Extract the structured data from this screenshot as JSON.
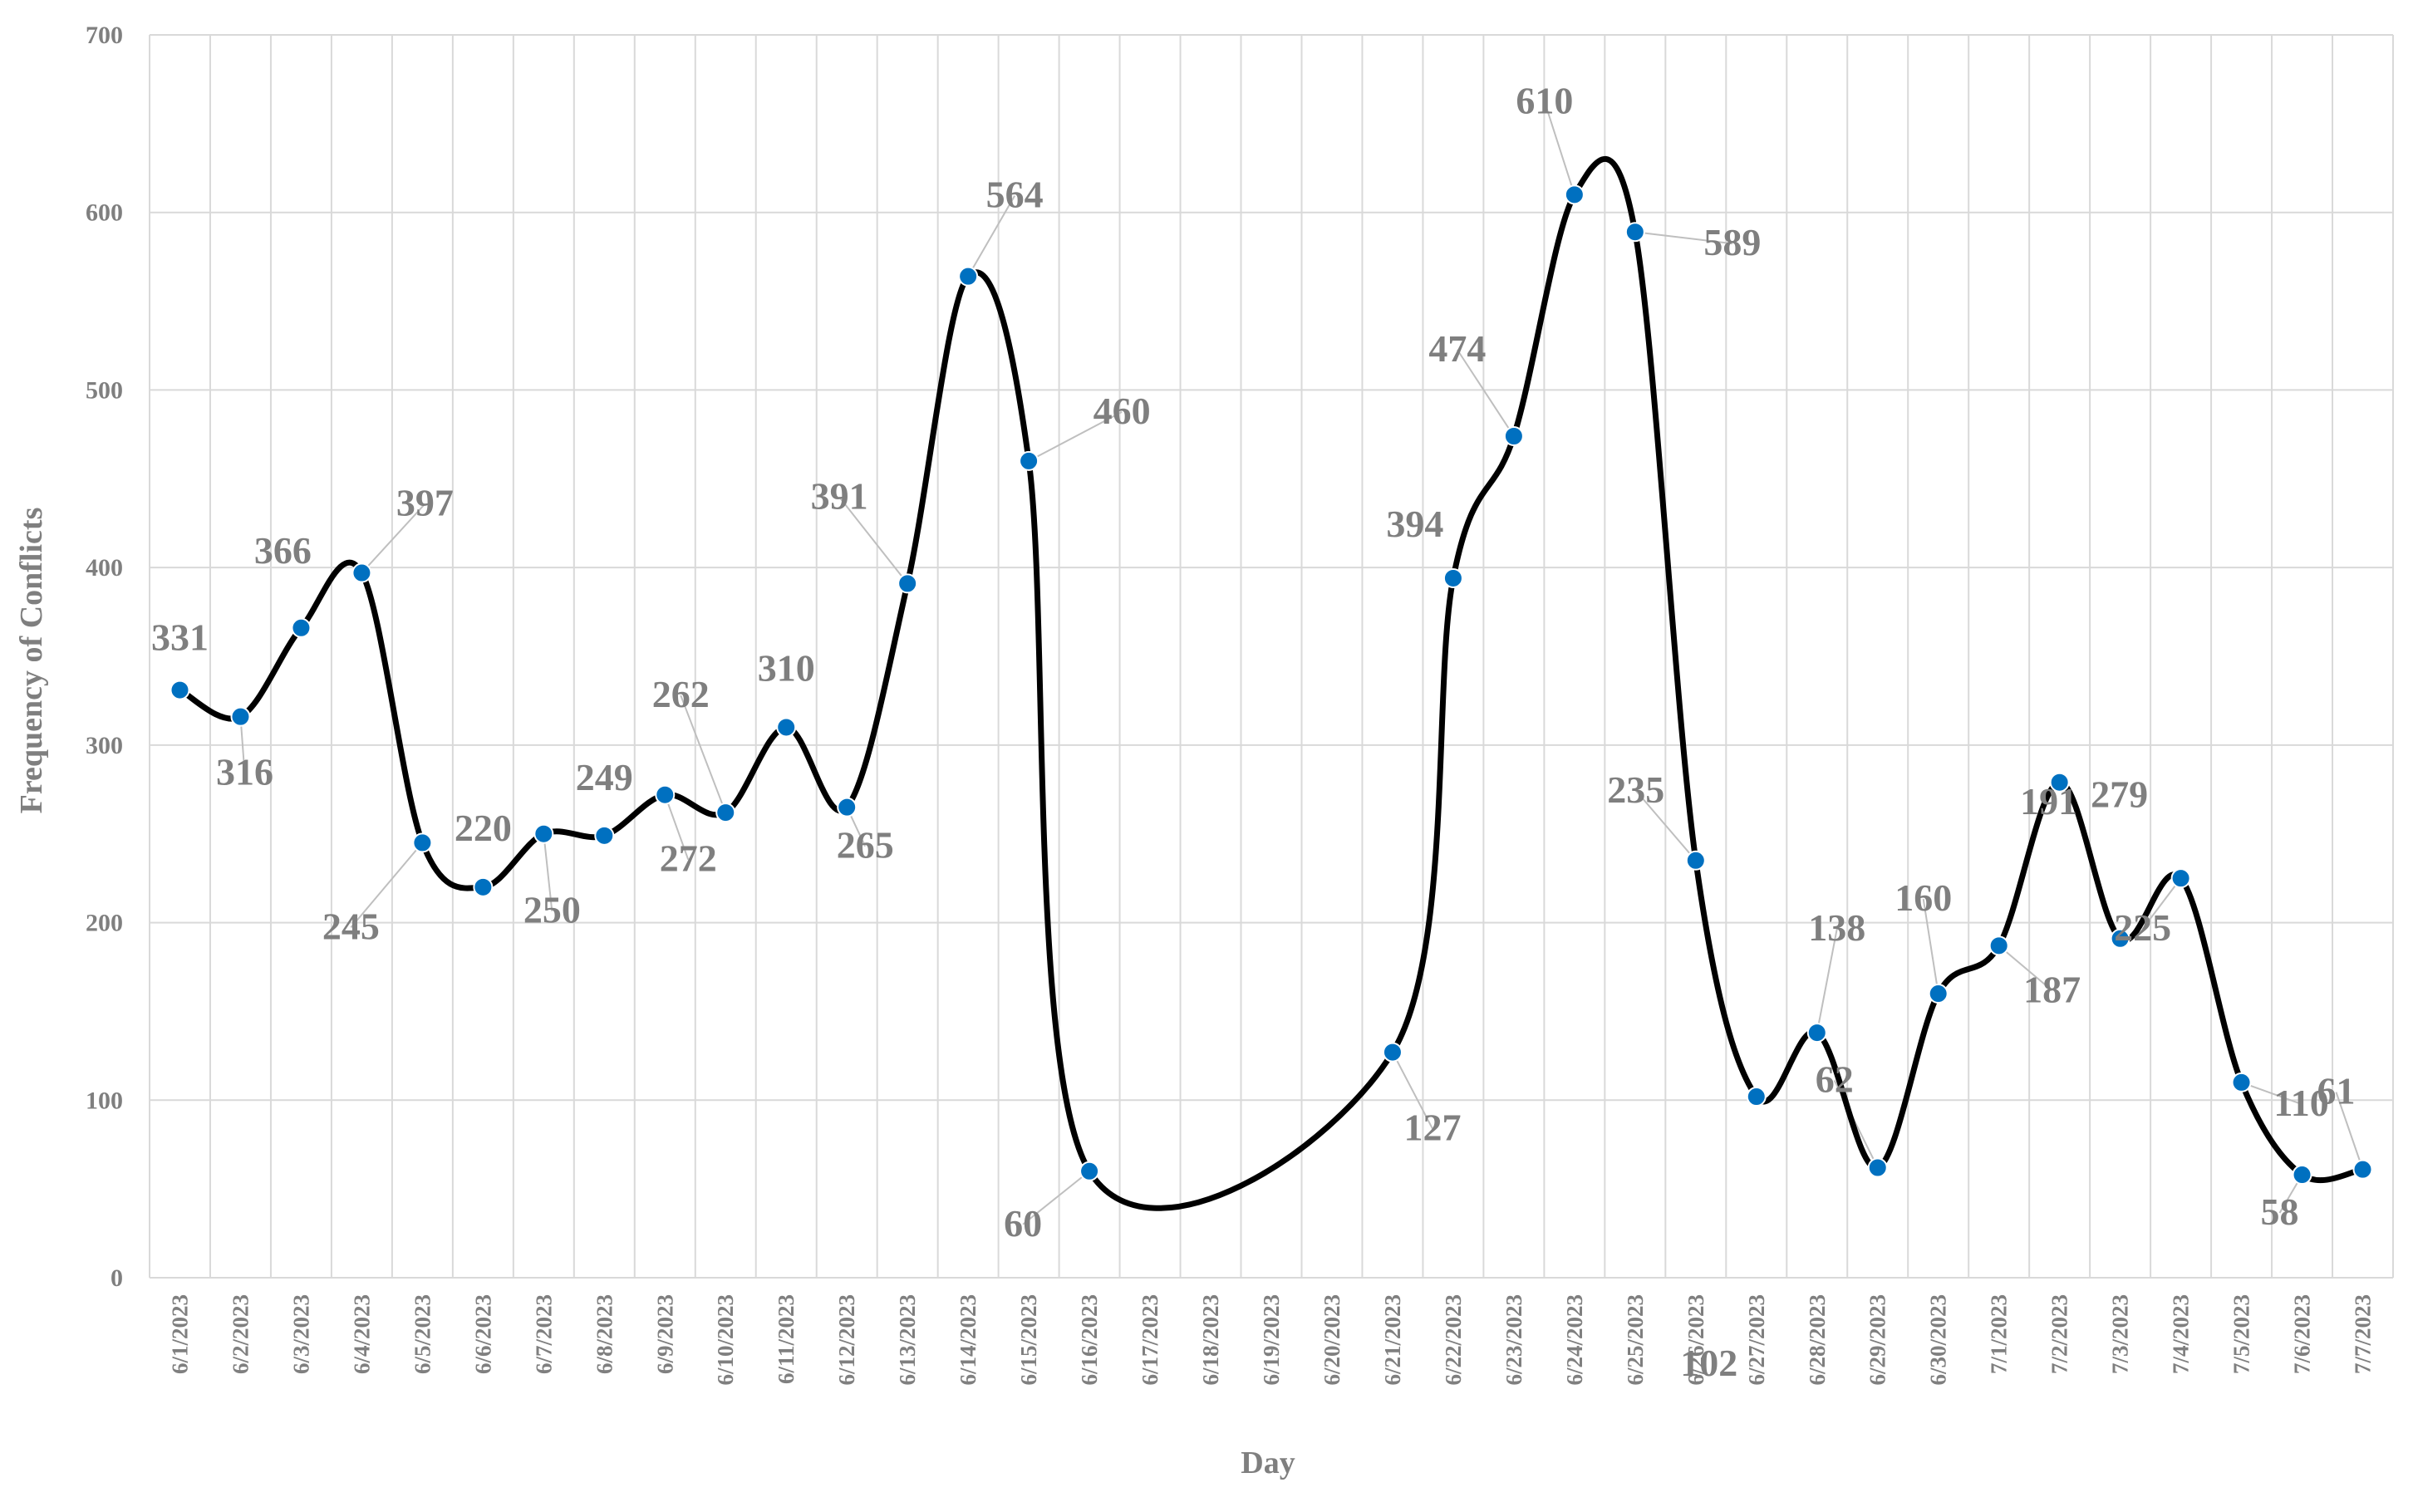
{
  "chart_data": {
    "type": "line",
    "xlabel": "Day",
    "ylabel": "Frequency of Conflicts",
    "ylim": [
      0,
      700
    ],
    "yticks": [
      0,
      100,
      200,
      300,
      400,
      500,
      600,
      700
    ],
    "grid": true,
    "smooth": true,
    "categories": [
      "6/1/2023",
      "6/2/2023",
      "6/3/2023",
      "6/4/2023",
      "6/5/2023",
      "6/6/2023",
      "6/7/2023",
      "6/8/2023",
      "6/9/2023",
      "6/10/2023",
      "6/11/2023",
      "6/12/2023",
      "6/13/2023",
      "6/14/2023",
      "6/15/2023",
      "6/16/2023",
      "6/17/2023",
      "6/18/2023",
      "6/19/2023",
      "6/20/2023",
      "6/21/2023",
      "6/22/2023",
      "6/23/2023",
      "6/24/2023",
      "6/25/2023",
      "6/26/2023",
      "6/27/2023",
      "6/28/2023",
      "6/29/2023",
      "6/30/2023",
      "7/1/2023",
      "7/2/2023",
      "7/3/2023",
      "7/4/2023",
      "7/5/2023",
      "7/6/2023",
      "7/7/2023"
    ],
    "points": [
      {
        "x": "6/1/2023",
        "y": 331
      },
      {
        "x": "6/2/2023",
        "y": 316
      },
      {
        "x": "6/3/2023",
        "y": 366
      },
      {
        "x": "6/4/2023",
        "y": 397
      },
      {
        "x": "6/5/2023",
        "y": 245
      },
      {
        "x": "6/6/2023",
        "y": 220
      },
      {
        "x": "6/7/2023",
        "y": 250
      },
      {
        "x": "6/8/2023",
        "y": 249
      },
      {
        "x": "6/9/2023",
        "y": 272
      },
      {
        "x": "6/10/2023",
        "y": 262
      },
      {
        "x": "6/11/2023",
        "y": 310
      },
      {
        "x": "6/12/2023",
        "y": 265
      },
      {
        "x": "6/13/2023",
        "y": 391
      },
      {
        "x": "6/14/2023",
        "y": 564
      },
      {
        "x": "6/15/2023",
        "y": 460
      },
      {
        "x": "6/16/2023",
        "y": 60
      },
      {
        "x": "6/21/2023",
        "y": 127
      },
      {
        "x": "6/22/2023",
        "y": 394
      },
      {
        "x": "6/23/2023",
        "y": 474
      },
      {
        "x": "6/24/2023",
        "y": 610
      },
      {
        "x": "6/25/2023",
        "y": 589
      },
      {
        "x": "6/26/2023",
        "y": 235
      },
      {
        "x": "6/27/2023",
        "y": 102
      },
      {
        "x": "6/28/2023",
        "y": 138
      },
      {
        "x": "6/29/2023",
        "y": 62
      },
      {
        "x": "6/30/2023",
        "y": 160
      },
      {
        "x": "7/1/2023",
        "y": 187
      },
      {
        "x": "7/2/2023",
        "y": 279
      },
      {
        "x": "7/3/2023",
        "y": 191
      },
      {
        "x": "7/4/2023",
        "y": 225
      },
      {
        "x": "7/5/2023",
        "y": 110
      },
      {
        "x": "7/6/2023",
        "y": 58
      },
      {
        "x": "7/7/2023",
        "y": 61
      }
    ],
    "colors": {
      "line": "#000000",
      "marker": "#0070c0",
      "label": "#7f7f7f",
      "grid": "#d9d9d9"
    }
  }
}
